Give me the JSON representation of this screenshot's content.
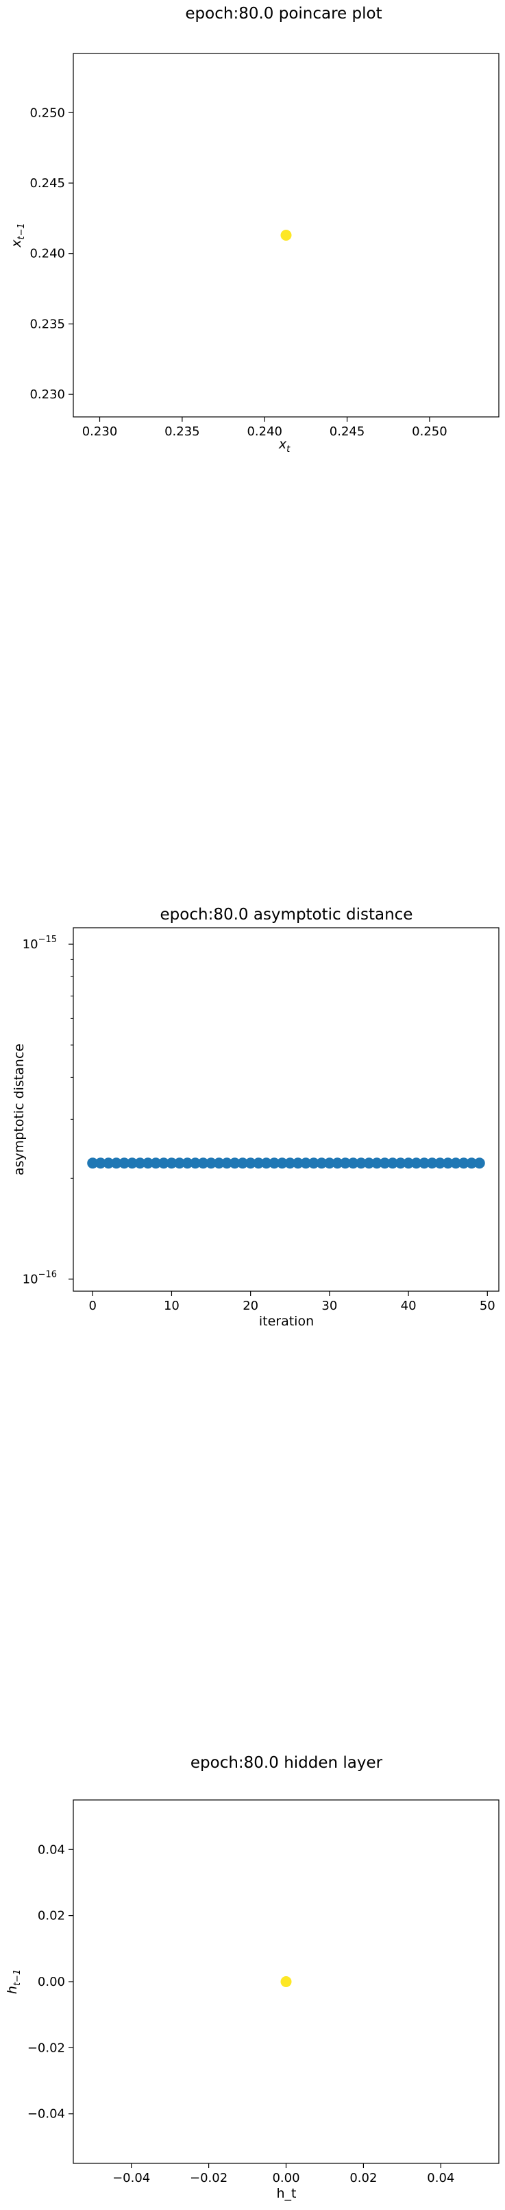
{
  "chart_data": [
    {
      "type": "scatter",
      "title": "epoch:80.0 poincare plot",
      "xlabel": "x_t",
      "ylabel": "x_{t-1}",
      "xlim": [
        0.2284,
        0.2542
      ],
      "ylim": [
        0.2284,
        0.2542
      ],
      "xticks": [
        "0.230",
        "0.235",
        "0.240",
        "0.245",
        "0.250"
      ],
      "xtick_values": [
        0.23,
        0.235,
        0.24,
        0.245,
        0.25
      ],
      "yticks": [
        "0.230",
        "0.235",
        "0.240",
        "0.245",
        "0.250"
      ],
      "ytick_values": [
        0.23,
        0.235,
        0.24,
        0.245,
        0.25
      ],
      "marker_color": "#fde725",
      "points": [
        {
          "x": 0.2413,
          "y": 0.2413
        }
      ]
    },
    {
      "type": "scatter",
      "title": "epoch:80.0 asymptotic distance",
      "xlabel": "iteration",
      "ylabel": "asymptotic distance",
      "yscale": "log",
      "xlim": [
        -2.45,
        51.45
      ],
      "ylim": [
        9.2e-17,
        1.12e-15
      ],
      "xticks": [
        "0",
        "10",
        "20",
        "30",
        "40",
        "50"
      ],
      "xtick_values": [
        0,
        10,
        20,
        30,
        40,
        50
      ],
      "yticks": [
        "10^-15",
        "10^-16"
      ],
      "ytick_values": [
        1e-15,
        1e-16
      ],
      "marker_color": "#1f77b4",
      "x": [
        0,
        1,
        2,
        3,
        4,
        5,
        6,
        7,
        8,
        9,
        10,
        11,
        12,
        13,
        14,
        15,
        16,
        17,
        18,
        19,
        20,
        21,
        22,
        23,
        24,
        25,
        26,
        27,
        28,
        29,
        30,
        31,
        32,
        33,
        34,
        35,
        36,
        37,
        38,
        39,
        40,
        41,
        42,
        43,
        44,
        45,
        46,
        47,
        48,
        49
      ],
      "y": [
        2.22e-16,
        2.22e-16,
        2.22e-16,
        2.22e-16,
        2.22e-16,
        2.22e-16,
        2.22e-16,
        2.22e-16,
        2.22e-16,
        2.22e-16,
        2.22e-16,
        2.22e-16,
        2.22e-16,
        2.22e-16,
        2.22e-16,
        2.22e-16,
        2.22e-16,
        2.22e-16,
        2.22e-16,
        2.22e-16,
        2.22e-16,
        2.22e-16,
        2.22e-16,
        2.22e-16,
        2.22e-16,
        2.22e-16,
        2.22e-16,
        2.22e-16,
        2.22e-16,
        2.22e-16,
        2.22e-16,
        2.22e-16,
        2.22e-16,
        2.22e-16,
        2.22e-16,
        2.22e-16,
        2.22e-16,
        2.22e-16,
        2.22e-16,
        2.22e-16,
        2.22e-16,
        2.22e-16,
        2.22e-16,
        2.22e-16,
        2.22e-16,
        2.22e-16,
        2.22e-16,
        2.22e-16,
        2.22e-16,
        2.22e-16
      ]
    },
    {
      "type": "scatter",
      "title": "epoch:80.0 hidden layer",
      "xlabel": "h_t",
      "ylabel": "h_{t-1}",
      "xlim": [
        -0.055,
        0.055
      ],
      "ylim": [
        -0.055,
        0.055
      ],
      "xticks": [
        "−0.04",
        "−0.02",
        "0.00",
        "0.02",
        "0.04"
      ],
      "xtick_values": [
        -0.04,
        -0.02,
        0.0,
        0.02,
        0.04
      ],
      "yticks": [
        "0.04",
        "0.02",
        "0.00",
        "−0.02",
        "−0.04"
      ],
      "ytick_values": [
        0.04,
        0.02,
        0.0,
        -0.02,
        -0.04
      ],
      "marker_color": "#fde725",
      "points": [
        {
          "x": 0.0,
          "y": 0.0
        }
      ]
    }
  ]
}
